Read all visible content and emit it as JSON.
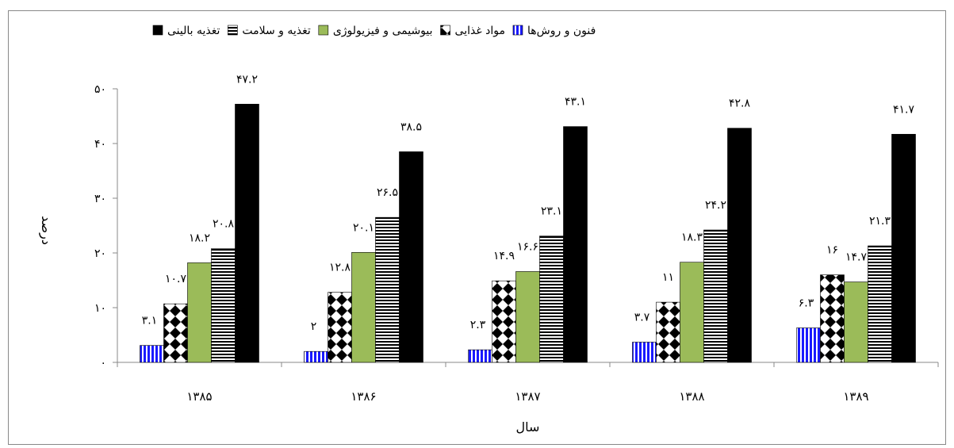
{
  "chart_data": {
    "type": "bar",
    "categories": [
      "۱۳۸۵",
      "۱۳۸۶",
      "۱۳۸۷",
      "۱۳۸۸",
      "۱۳۸۹"
    ],
    "series": [
      {
        "name": "فنون و روش‌ها",
        "values": [
          3.1,
          2,
          2.3,
          3.7,
          6.3
        ],
        "labels": [
          "۳.۱",
          "۲",
          "۲.۳",
          "۳.۷",
          "۶.۳"
        ],
        "pattern": "vertical-stripes",
        "color": "#1a1aff"
      },
      {
        "name": "مواد غذایی",
        "values": [
          10.7,
          12.8,
          14.9,
          11,
          16
        ],
        "labels": [
          "۱۰.۷",
          "۱۲.۸",
          "۱۴.۹",
          "۱۱",
          "۱۶"
        ],
        "pattern": "checker-diamond",
        "color": "#000000"
      },
      {
        "name": "بیوشیمی و فیزیولوژی",
        "values": [
          18.2,
          20.1,
          16.6,
          18.3,
          14.7
        ],
        "labels": [
          "۱۸.۲",
          "۲۰.۱",
          "۱۶.۶",
          "۱۸.۳",
          "۱۴.۷"
        ],
        "pattern": "solid",
        "color": "#9bbb59"
      },
      {
        "name": "تغذیه و سلامت",
        "values": [
          20.8,
          26.5,
          23.1,
          24.2,
          21.3
        ],
        "labels": [
          "۲۰.۸",
          "۲۶.۵",
          "۲۳.۱",
          "۲۴.۲",
          "۲۱.۳"
        ],
        "pattern": "horizontal-stripes",
        "color": "#000000"
      },
      {
        "name": "تغذیه بالینی",
        "values": [
          47.2,
          38.5,
          43.1,
          42.8,
          41.7
        ],
        "labels": [
          "۴۷.۲",
          "۳۸.۵",
          "۴۳.۱",
          "۴۲.۸",
          "۴۱.۷"
        ],
        "pattern": "solid",
        "color": "#000000"
      }
    ],
    "ylim": [
      0,
      50
    ],
    "yticks": [
      0,
      10,
      20,
      30,
      40,
      50
    ],
    "ytick_labels": [
      "۰",
      "۱۰",
      "۲۰",
      "۳۰",
      "۴۰",
      "۵۰"
    ],
    "xlabel": "سال",
    "ylabel": "درصد",
    "legend_position": "top",
    "grid": false
  }
}
